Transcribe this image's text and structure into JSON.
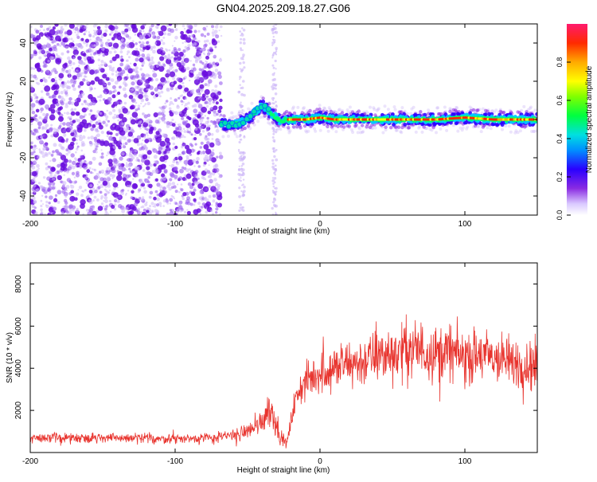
{
  "title": "GN04.2025.209.18.27.G06",
  "chart_data": [
    {
      "type": "heatmap",
      "xlabel": "Height of straight line (km)",
      "ylabel": "Frequency (Hz)",
      "xlim": [
        -200,
        150
      ],
      "ylim": [
        -50,
        50
      ],
      "xticks": [
        -200,
        -100,
        0,
        100
      ],
      "xtick_labels": [
        "-200",
        "-100",
        "0",
        "100"
      ],
      "yticks": [
        -40,
        -20,
        0,
        20,
        40
      ],
      "ytick_labels": [
        "-40",
        "-20",
        "0",
        "20",
        "40"
      ],
      "colorbar": {
        "label": "Normalized spectral amplitude",
        "range": [
          0,
          1
        ],
        "ticks": [
          0.0,
          0.2,
          0.4,
          0.6,
          0.8
        ],
        "tick_labels": [
          "0.0",
          "0.2",
          "0.4",
          "0.6",
          "0.8"
        ]
      },
      "noise_region_x": [
        -200,
        -68
      ],
      "ridge": {
        "x": [
          -68,
          -62,
          -56,
          -50,
          -45,
          -40,
          -37,
          -34,
          -30,
          -27,
          -24,
          -20,
          -10,
          0,
          10,
          20,
          40,
          60,
          80,
          100,
          120,
          150
        ],
        "y": [
          -2,
          -3,
          -2,
          0,
          4,
          7,
          6,
          3,
          1,
          -1,
          0,
          0,
          0,
          1,
          0,
          0,
          0,
          0,
          0,
          1,
          0,
          0
        ]
      }
    },
    {
      "type": "line",
      "xlabel": "Height of straight line (km)",
      "ylabel": "SNR (10 * v/v)",
      "xlim": [
        -200,
        150
      ],
      "ylim": [
        0,
        9000
      ],
      "xticks": [
        -200,
        -100,
        0,
        100
      ],
      "xtick_labels": [
        "-200",
        "-100",
        "0",
        "100"
      ],
      "yticks": [
        2000,
        4000,
        6000,
        8000
      ],
      "ytick_labels": [
        "2000",
        "4000",
        "6000",
        "8000"
      ],
      "color": "#e8342e",
      "envelope": {
        "x": [
          -200,
          -150,
          -100,
          -70,
          -55,
          -45,
          -40,
          -35,
          -30,
          -27,
          -23,
          -18,
          -14,
          -10,
          -5,
          0,
          10,
          20,
          30,
          40,
          50,
          60,
          70,
          80,
          90,
          100,
          110,
          120,
          130,
          140,
          150
        ],
        "mean": [
          700,
          700,
          650,
          700,
          900,
          1200,
          1500,
          2200,
          1400,
          700,
          400,
          2200,
          3000,
          3300,
          3600,
          3800,
          4000,
          4200,
          4300,
          4600,
          4700,
          4900,
          4900,
          4700,
          4800,
          4500,
          4600,
          4500,
          4300,
          4200,
          4100
        ],
        "spread": [
          350,
          350,
          350,
          400,
          500,
          600,
          900,
          1400,
          1000,
          500,
          300,
          900,
          1200,
          1300,
          1400,
          1500,
          1600,
          1700,
          1800,
          1900,
          2000,
          2100,
          2100,
          2000,
          2000,
          1900,
          1900,
          1900,
          1800,
          1800,
          1800
        ]
      }
    }
  ]
}
